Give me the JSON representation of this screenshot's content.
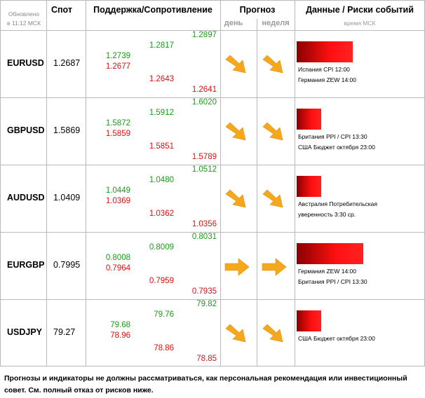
{
  "header": {
    "updated_line1": "Обновлено",
    "updated_line2": "в 11:12 МСК",
    "spot": "Спот",
    "support_resistance": "Поддержка/Сопротивление",
    "forecast": "Прогноз",
    "forecast_day": "день",
    "forecast_week": "неделя",
    "events": "Данные / Риски событий",
    "events_time": "время МСК"
  },
  "rows": [
    {
      "pair": "EURUSD",
      "spot": "1.2687",
      "s1_up": "1.2739",
      "s1_dn": "1.2677",
      "s2_up": "1.2817",
      "s2_dn": "1.2643",
      "s3_up": "1.2897",
      "s3_dn": "1.2641",
      "day_direction": "down-right",
      "week_direction": "down-right",
      "risk_level": 0.8,
      "events": [
        "Испания CPI 12:00",
        "Германия ZEW 14:00"
      ]
    },
    {
      "pair": "GBPUSD",
      "spot": "1.5869",
      "s1_up": "1.5872",
      "s1_dn": "1.5859",
      "s2_up": "1.5912",
      "s2_dn": "1.5851",
      "s3_up": "1.6020",
      "s3_dn": "1.5789",
      "day_direction": "down-right",
      "week_direction": "down-right",
      "risk_level": 0.35,
      "events": [
        "Британия PPI / CPI 13:30",
        "США Бюджет октября 23:00"
      ]
    },
    {
      "pair": "AUDUSD",
      "spot": "1.0409",
      "s1_up": "1.0449",
      "s1_dn": "1.0369",
      "s2_up": "1.0480",
      "s2_dn": "1.0362",
      "s3_up": "1.0512",
      "s3_dn": "1.0356",
      "day_direction": "down-right",
      "week_direction": "down-right",
      "risk_level": 0.35,
      "events": [
        "Австралия Потребительская",
        "уверенность 3:30 ср."
      ]
    },
    {
      "pair": "EURGBP",
      "spot": "0.7995",
      "s1_up": "0.8008",
      "s1_dn": "0.7964",
      "s2_up": "0.8009",
      "s2_dn": "0.7959",
      "s3_up": "0.8031",
      "s3_dn": "0.7935",
      "day_direction": "right",
      "week_direction": "right",
      "risk_level": 0.95,
      "events": [
        "Германия ZEW 14:00",
        "Британия PPI / CPI 13:30"
      ]
    },
    {
      "pair": "USDJPY",
      "spot": "79.27",
      "s1_up": "79.68",
      "s1_dn": "78.96",
      "s2_up": "79.76",
      "s2_dn": "78.86",
      "s3_up": "79.82",
      "s3_dn": "78.85",
      "day_direction": "down-right",
      "week_direction": "down-right",
      "risk_level": 0.35,
      "events": [
        "США Бюджет октября 23:00"
      ]
    }
  ],
  "footer": {
    "line1": "Прогнозы и индикаторы не должны рассматриваться, как персональная рекомендация или инвестиционный",
    "line2": "совет. См. полный отказ от рисков ниже."
  },
  "colors": {
    "support": "#1a9a1a",
    "resistance": "#dd1111",
    "arrow": "#f6a81c",
    "risk_bar": "#ff1010"
  }
}
